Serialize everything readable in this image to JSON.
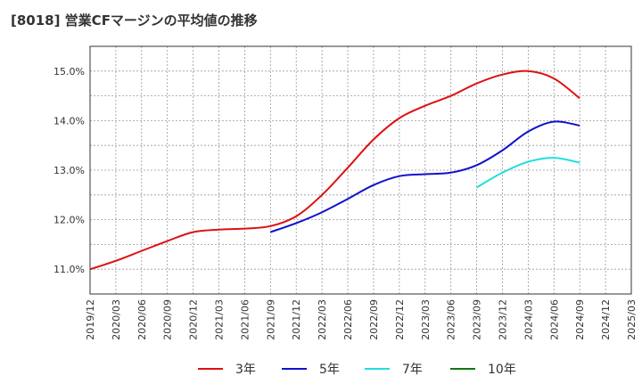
{
  "chart_data": {
    "type": "line",
    "title": "[8018]  営業CFマージンの平均値の推移",
    "xlabel": "",
    "ylabel": "",
    "x_ticks": [
      "2019/12",
      "2020/03",
      "2020/06",
      "2020/09",
      "2020/12",
      "2021/03",
      "2021/06",
      "2021/09",
      "2021/12",
      "2022/03",
      "2022/06",
      "2022/09",
      "2022/12",
      "2023/03",
      "2023/06",
      "2023/09",
      "2023/12",
      "2024/03",
      "2024/06",
      "2024/09",
      "2024/12",
      "2025/03"
    ],
    "y_ticks": [
      "11.0%",
      "12.0%",
      "13.0%",
      "14.0%",
      "15.0%"
    ],
    "ylim": [
      10.5,
      15.5
    ],
    "grid": true,
    "legend_position": "bottom",
    "series": [
      {
        "name": "3年",
        "color": "#dd1111",
        "x": [
          "2019/12",
          "2020/03",
          "2020/06",
          "2020/09",
          "2020/12",
          "2021/03",
          "2021/06",
          "2021/09",
          "2021/12",
          "2022/03",
          "2022/06",
          "2022/09",
          "2022/12",
          "2023/03",
          "2023/06",
          "2023/09",
          "2023/12",
          "2024/03",
          "2024/06",
          "2024/09"
        ],
        "values": [
          11.0,
          11.17,
          11.37,
          11.57,
          11.75,
          11.8,
          11.82,
          11.87,
          12.07,
          12.5,
          13.05,
          13.62,
          14.05,
          14.3,
          14.5,
          14.75,
          14.93,
          15.0,
          14.85,
          14.45
        ]
      },
      {
        "name": "5年",
        "color": "#1111cc",
        "x": [
          "2021/09",
          "2021/12",
          "2022/03",
          "2022/06",
          "2022/09",
          "2022/12",
          "2023/03",
          "2023/06",
          "2023/09",
          "2023/12",
          "2024/03",
          "2024/06",
          "2024/09"
        ],
        "values": [
          11.75,
          11.93,
          12.15,
          12.42,
          12.7,
          12.88,
          12.92,
          12.95,
          13.1,
          13.4,
          13.78,
          13.98,
          13.9
        ]
      },
      {
        "name": "7年",
        "color": "#22dddd",
        "x": [
          "2023/09",
          "2023/12",
          "2024/03",
          "2024/06",
          "2024/09"
        ],
        "values": [
          12.65,
          12.95,
          13.17,
          13.25,
          13.15
        ]
      },
      {
        "name": "10年",
        "color": "#117711",
        "x": [],
        "values": []
      }
    ]
  }
}
